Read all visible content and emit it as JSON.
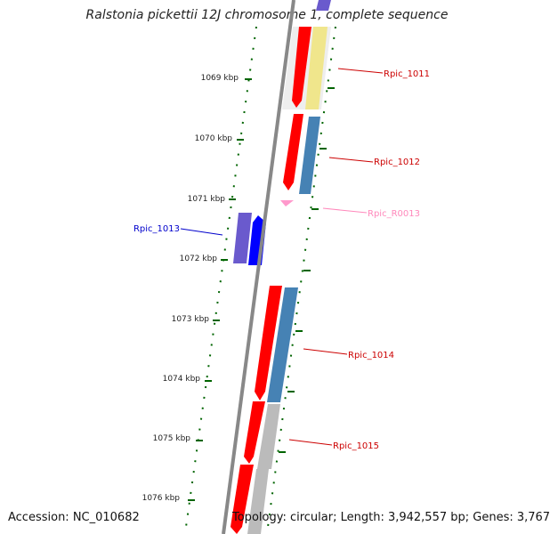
{
  "title": "Ralstonia pickettii 12J chromosome 1, complete sequence",
  "accession": "Accession: NC_010682",
  "topology": "Topology: circular; Length: 3,942,557 bp; Genes: 3,767",
  "scale_labels": [
    "1069 kbp",
    "1070 kbp",
    "1071 kbp",
    "1072 kbp",
    "1073 kbp",
    "1074 kbp",
    "1075 kbp",
    "1076 kbp"
  ],
  "gene_labels": {
    "g1011": "Rpic_1011",
    "g1012": "Rpic_1012",
    "r0013": "Rpic_R0013",
    "g1013": "Rpic_1013",
    "g1014": "Rpic_1014",
    "g1015": "Rpic_1015"
  },
  "colors": {
    "backbone": "#888888",
    "cds_forward": "#ff0000",
    "cds_reverse": "#0000ff",
    "rna": "#ff99cc",
    "blue_gene": "#4682b4",
    "yellow_gene": "#f0e68c",
    "gray_gene": "#bbbbbb",
    "purple_gene": "#6a5acd",
    "scale": "#006400",
    "label_red": "#cc0000",
    "label_blue": "#0000cc",
    "label_pink": "#ff88bb"
  }
}
